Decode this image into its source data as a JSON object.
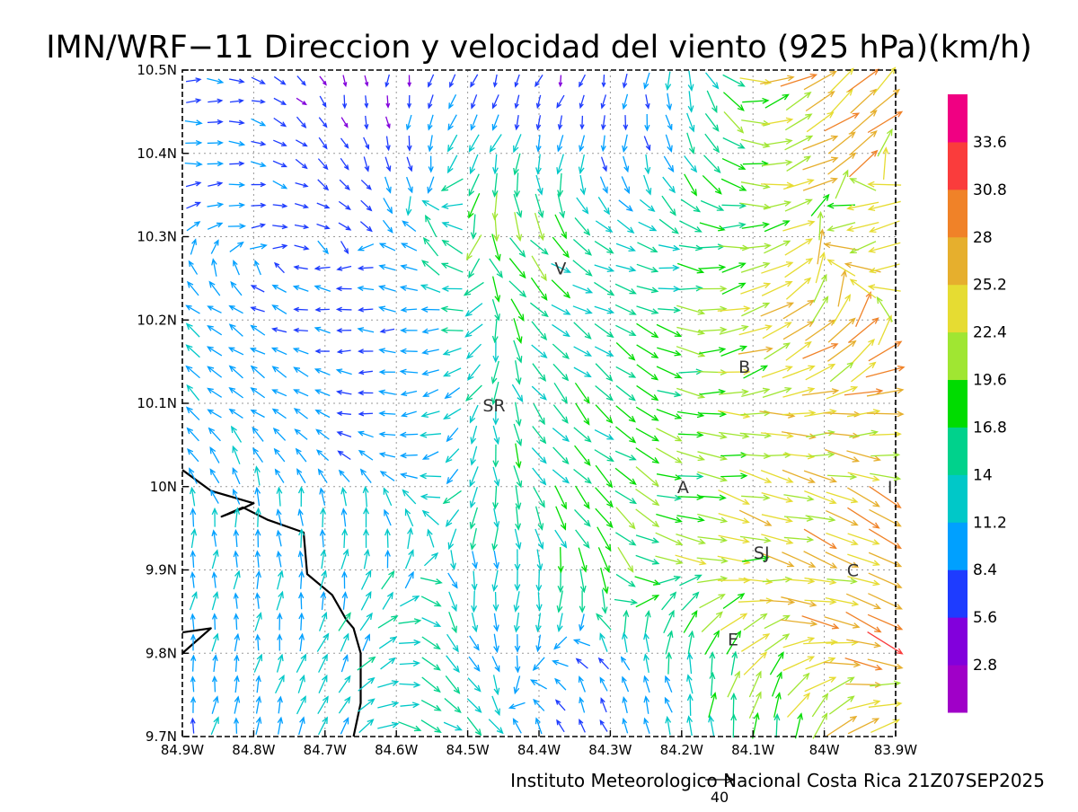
{
  "title": "IMN/WRF−11 Direccion y velocidad del viento (925 hPa)(km/h)",
  "footer": "Instituto Meteorologico Nacional Costa Rica 21Z07SEP2025",
  "reference_vector": {
    "label": "40",
    "speed": 40
  },
  "map": {
    "extent": {
      "lon_west": -84.9,
      "lon_east": -83.9,
      "lat_south": 9.7,
      "lat_north": 10.5
    },
    "lon_ticks": [
      {
        "value": -84.9,
        "label": "84.9W"
      },
      {
        "value": -84.8,
        "label": "84.8W"
      },
      {
        "value": -84.7,
        "label": "84.7W"
      },
      {
        "value": -84.6,
        "label": "84.6W"
      },
      {
        "value": -84.5,
        "label": "84.5W"
      },
      {
        "value": -84.4,
        "label": "84.4W"
      },
      {
        "value": -84.3,
        "label": "84.3W"
      },
      {
        "value": -84.2,
        "label": "84.2W"
      },
      {
        "value": -84.1,
        "label": "84.1W"
      },
      {
        "value": -84.0,
        "label": "84W"
      },
      {
        "value": -83.9,
        "label": "83.9W"
      }
    ],
    "lat_ticks": [
      {
        "value": 10.5,
        "label": "10.5N"
      },
      {
        "value": 10.4,
        "label": "10.4N"
      },
      {
        "value": 10.3,
        "label": "10.3N"
      },
      {
        "value": 10.2,
        "label": "10.2N"
      },
      {
        "value": 10.1,
        "label": "10.1N"
      },
      {
        "value": 10.0,
        "label": "10N"
      },
      {
        "value": 9.9,
        "label": "9.9N"
      },
      {
        "value": 9.8,
        "label": "9.8N"
      },
      {
        "value": 9.7,
        "label": "9.7N"
      }
    ],
    "city_labels": [
      {
        "code": "V",
        "lon": -84.37,
        "lat": 10.262
      },
      {
        "code": "B",
        "lon": -84.112,
        "lat": 10.144
      },
      {
        "code": "SR",
        "lon": -84.463,
        "lat": 10.098
      },
      {
        "code": "A",
        "lon": -84.198,
        "lat": 10.0
      },
      {
        "code": "SJ",
        "lon": -84.088,
        "lat": 9.921
      },
      {
        "code": "C",
        "lon": -83.96,
        "lat": 9.9
      },
      {
        "code": "E",
        "lon": -84.128,
        "lat": 9.817
      },
      {
        "code": "I",
        "lon": -83.908,
        "lat": 10.0
      }
    ],
    "coastline": [
      [
        -84.9,
        10.02
      ],
      [
        -84.86,
        9.995
      ],
      [
        -84.8,
        9.98
      ],
      [
        -84.815,
        9.974
      ],
      [
        -84.845,
        9.964
      ],
      [
        -84.815,
        9.975
      ],
      [
        -84.78,
        9.96
      ],
      [
        -84.73,
        9.945
      ],
      [
        -84.725,
        9.895
      ],
      [
        -84.69,
        9.87
      ],
      [
        -84.67,
        9.84
      ],
      [
        -84.66,
        9.83
      ],
      [
        -84.65,
        9.8
      ],
      [
        -84.65,
        9.74
      ],
      [
        -84.66,
        9.7
      ]
    ],
    "coastline_southwest": [
      [
        -84.9,
        9.825
      ],
      [
        -84.86,
        9.83
      ],
      [
        -84.9,
        9.8
      ]
    ]
  },
  "colorbar": {
    "colors": [
      "#a000c8",
      "#8200dc",
      "#1e3cff",
      "#00a0ff",
      "#00c8c8",
      "#00d28c",
      "#00dc00",
      "#a0e632",
      "#e6dc32",
      "#e6af2d",
      "#f08228",
      "#fa3c3c",
      "#f00082"
    ],
    "labels": [
      "2.8",
      "5.6",
      "8.4",
      "11.2",
      "14",
      "16.8",
      "19.6",
      "22.4",
      "25.2",
      "28",
      "30.8",
      "33.6"
    ]
  },
  "wind_regions": [
    {
      "lon": -84.84,
      "lat": 10.43,
      "r": 0.1,
      "dir": 80,
      "speed": 9
    },
    {
      "lon": -84.65,
      "lat": 10.46,
      "r": 0.1,
      "dir": 200,
      "speed": 3
    },
    {
      "lon": -84.7,
      "lat": 10.33,
      "r": 0.12,
      "dir": 110,
      "speed": 7
    },
    {
      "lon": -84.78,
      "lat": 10.18,
      "r": 0.14,
      "dir": 300,
      "speed": 11
    },
    {
      "lon": -84.62,
      "lat": 10.15,
      "r": 0.1,
      "dir": 250,
      "speed": 4
    },
    {
      "lon": -84.5,
      "lat": 10.3,
      "r": 0.1,
      "dir": 340,
      "speed": 19
    },
    {
      "lon": -84.44,
      "lat": 10.3,
      "r": 0.07,
      "dir": 160,
      "speed": 26
    },
    {
      "lon": -84.36,
      "lat": 10.45,
      "r": 0.1,
      "dir": 200,
      "speed": 4
    },
    {
      "lon": -84.3,
      "lat": 10.26,
      "r": 0.08,
      "dir": 90,
      "speed": 13
    },
    {
      "lon": -84.2,
      "lat": 10.4,
      "r": 0.1,
      "dir": 180,
      "speed": 9
    },
    {
      "lon": -84.12,
      "lat": 10.3,
      "r": 0.1,
      "dir": 60,
      "speed": 21
    },
    {
      "lon": -84.0,
      "lat": 10.45,
      "r": 0.1,
      "dir": 50,
      "speed": 29
    },
    {
      "lon": -83.97,
      "lat": 10.3,
      "r": 0.1,
      "dir": 240,
      "speed": 22
    },
    {
      "lon": -84.0,
      "lat": 10.15,
      "r": 0.09,
      "dir": 30,
      "speed": 29
    },
    {
      "lon": -84.35,
      "lat": 10.15,
      "r": 0.1,
      "dir": 150,
      "speed": 14
    },
    {
      "lon": -84.5,
      "lat": 10.05,
      "r": 0.08,
      "dir": 240,
      "speed": 15
    },
    {
      "lon": -84.4,
      "lat": 10.05,
      "r": 0.08,
      "dir": 110,
      "speed": 12
    },
    {
      "lon": -84.35,
      "lat": 9.95,
      "r": 0.1,
      "dir": 150,
      "speed": 23
    },
    {
      "lon": -84.15,
      "lat": 10.05,
      "r": 0.1,
      "dir": 90,
      "speed": 18
    },
    {
      "lon": -84.0,
      "lat": 10.02,
      "r": 0.1,
      "dir": 120,
      "speed": 23
    },
    {
      "lon": -84.05,
      "lat": 9.93,
      "r": 0.1,
      "dir": 110,
      "speed": 25
    },
    {
      "lon": -83.95,
      "lat": 9.86,
      "r": 0.08,
      "dir": 120,
      "speed": 30
    },
    {
      "lon": -84.45,
      "lat": 9.88,
      "r": 0.08,
      "dir": 210,
      "speed": 5
    },
    {
      "lon": -84.55,
      "lat": 9.82,
      "r": 0.1,
      "dir": 140,
      "speed": 17
    },
    {
      "lon": -84.3,
      "lat": 9.75,
      "r": 0.1,
      "dir": 330,
      "speed": 5
    },
    {
      "lon": -84.1,
      "lat": 9.78,
      "r": 0.1,
      "dir": 10,
      "speed": 19
    },
    {
      "lon": -84.75,
      "lat": 9.86,
      "r": 0.14,
      "dir": 10,
      "speed": 10
    },
    {
      "lon": -84.62,
      "lat": 9.92,
      "r": 0.1,
      "dir": 0,
      "speed": 12
    }
  ]
}
